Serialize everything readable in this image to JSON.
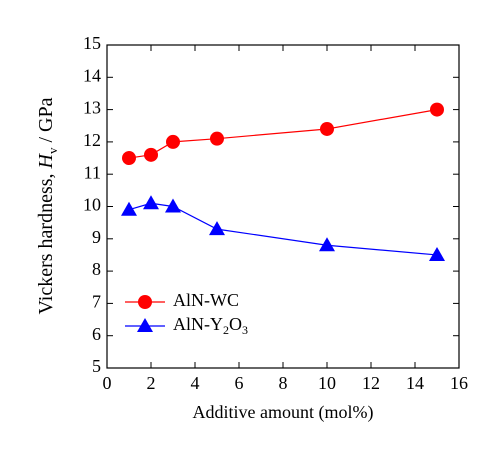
{
  "chart_data": {
    "type": "line",
    "xlabel": "Additive amount (mol%)",
    "ylabel": [
      "Vickers hardness, ",
      "H",
      "v",
      " / GPa"
    ],
    "x": [
      1,
      2,
      3,
      5,
      10,
      15
    ],
    "series": [
      {
        "name": "AlN-WC",
        "color": "#ff0000",
        "marker": "circle",
        "values": [
          11.5,
          11.6,
          12.0,
          12.1,
          12.4,
          13.0
        ]
      },
      {
        "name": "AlN-Y2O3",
        "color": "#0000ff",
        "marker": "triangle",
        "values": [
          9.9,
          10.1,
          10.0,
          9.3,
          8.8,
          8.5
        ]
      }
    ],
    "xlim": [
      0,
      16
    ],
    "xticks": [
      0,
      2,
      4,
      6,
      8,
      10,
      12,
      14,
      16
    ],
    "ylim": [
      5,
      15
    ],
    "yticks": [
      5,
      6,
      7,
      8,
      9,
      10,
      11,
      12,
      13,
      14,
      15
    ],
    "legend": "lower left",
    "grid": false
  }
}
